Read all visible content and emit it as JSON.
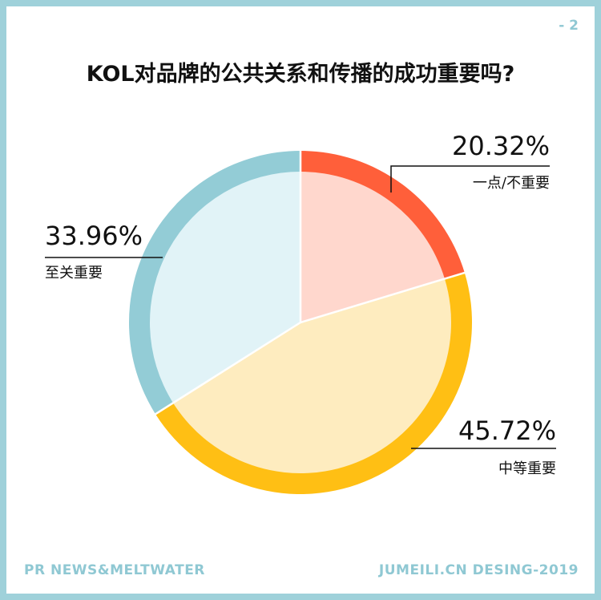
{
  "page_number": "- 2",
  "title": "KOL对品牌的公共关系和传播的成功重要吗?",
  "footer": {
    "left": "PR NEWS&MELTWATER",
    "right": "JUMEILI.CN DESING-2019"
  },
  "chart_data": {
    "type": "pie",
    "title": "KOL对品牌的公共关系和传播的成功重要吗?",
    "slices": [
      {
        "label": "一点/不重要",
        "value": 20.32,
        "value_label": "20.32%",
        "ring_color": "#ff5f3a",
        "fill_color": "#ffd7cd"
      },
      {
        "label": "中等重要",
        "value": 45.72,
        "value_label": "45.72%",
        "ring_color": "#ffbf14",
        "fill_color": "#feecbf"
      },
      {
        "label": "至关重要",
        "value": 33.96,
        "value_label": "33.96%",
        "ring_color": "#93ccd6",
        "fill_color": "#e1f3f7"
      }
    ]
  }
}
